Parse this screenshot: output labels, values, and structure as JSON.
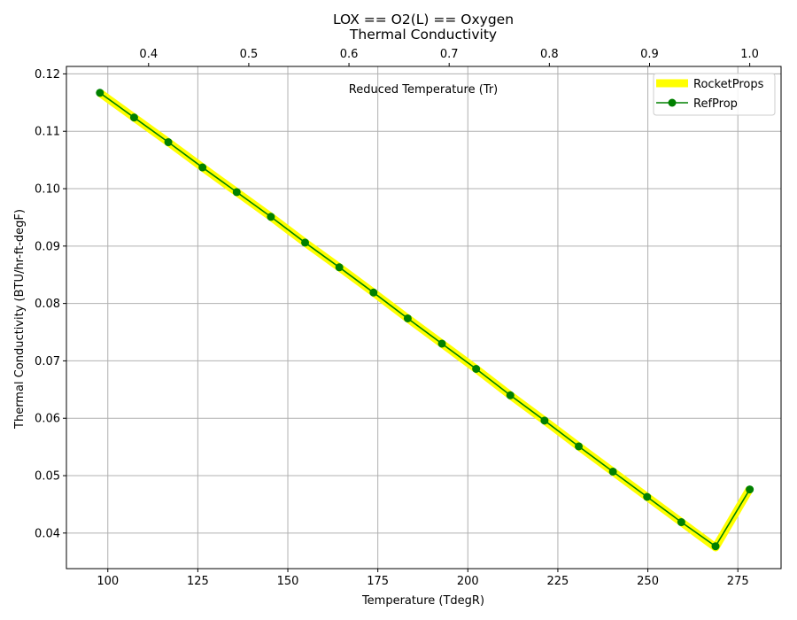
{
  "chart_data": {
    "type": "line",
    "title": "LOX == O2(L) == Oxygen",
    "subtitle": "Thermal Conductivity",
    "xlabel": "Temperature (TdegR)",
    "ylabel": "Thermal Conductivity (BTU/hr-ft-degF)",
    "top_axis_label": "Reduced Temperature (Tr)",
    "xlim": [
      88.5,
      287
    ],
    "ylim": [
      0.0338,
      0.1213
    ],
    "x_ticks": [
      100,
      125,
      150,
      175,
      200,
      225,
      250,
      275
    ],
    "y_ticks": [
      0.04,
      0.05,
      0.06,
      0.07,
      0.08,
      0.09,
      0.1,
      0.11,
      0.12
    ],
    "y_tick_labels": [
      "0.04",
      "0.05",
      "0.06",
      "0.07",
      "0.08",
      "0.09",
      "0.10",
      "0.11",
      "0.12"
    ],
    "top_ticks": [
      0.4,
      0.5,
      0.6,
      0.7,
      0.8,
      0.9,
      1.0
    ],
    "top_tick_labels": [
      "0.4",
      "0.5",
      "0.6",
      "0.7",
      "0.8",
      "0.9",
      "1.0"
    ],
    "tc_degR": 278.3,
    "grid": true,
    "legend_position": "top-right",
    "x": [
      97.8,
      107.3,
      116.8,
      126.3,
      135.8,
      145.3,
      154.8,
      164.3,
      173.8,
      183.3,
      192.8,
      202.3,
      211.8,
      221.3,
      230.8,
      240.3,
      249.8,
      259.3,
      268.8,
      278.3
    ],
    "series": [
      {
        "name": "RocketProps",
        "color": "#ffff00",
        "style": "thick-line",
        "values": [
          0.1167,
          0.1124,
          0.1081,
          0.1037,
          0.0994,
          0.0951,
          0.0906,
          0.0863,
          0.0819,
          0.0774,
          0.073,
          0.0686,
          0.064,
          0.0596,
          0.0551,
          0.0507,
          0.0463,
          0.0419,
          0.0375,
          0.0477
        ]
      },
      {
        "name": "RefProp",
        "color": "#008000",
        "style": "line-marker",
        "values": [
          0.1167,
          0.1124,
          0.1081,
          0.1037,
          0.0994,
          0.0951,
          0.0906,
          0.0863,
          0.0819,
          0.0774,
          0.073,
          0.0686,
          0.064,
          0.0596,
          0.0551,
          0.0507,
          0.0463,
          0.0419,
          0.0377,
          0.0476
        ]
      }
    ]
  }
}
